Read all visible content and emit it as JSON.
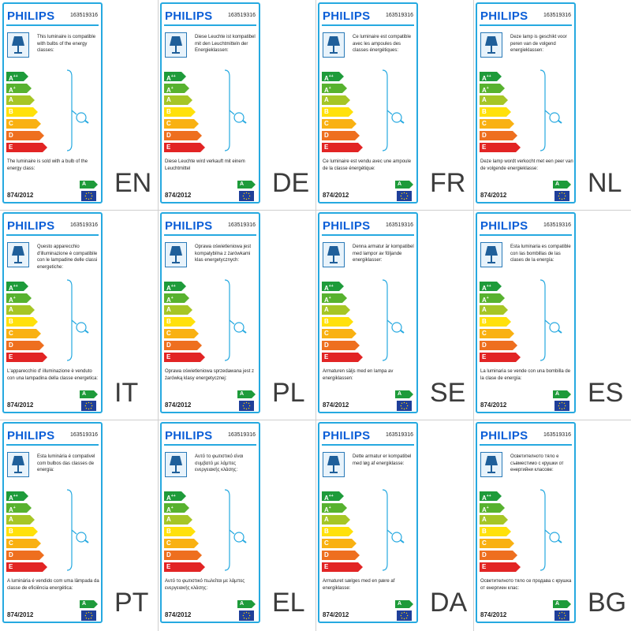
{
  "code": "163519316",
  "brand": "PHILIPS",
  "regulation": "874/2012",
  "sold_class": "A",
  "classes": [
    {
      "base": "A",
      "sup": "++"
    },
    {
      "base": "A",
      "sup": "+"
    },
    {
      "base": "A",
      "sup": ""
    },
    {
      "base": "B",
      "sup": ""
    },
    {
      "base": "C",
      "sup": ""
    },
    {
      "base": "D",
      "sup": ""
    },
    {
      "base": "E",
      "sup": ""
    }
  ],
  "class_colors": [
    "#1e9b3a",
    "#57b22f",
    "#a6c626",
    "#ffe10a",
    "#f9b112",
    "#ee6f1f",
    "#e22424"
  ],
  "cells": [
    {
      "lang": "EN",
      "desc": "This luminaire is compatible with bulbs of the energy classes:",
      "sold": "The luminaire is sold with a bulb of the energy class:"
    },
    {
      "lang": "DE",
      "desc": "Diese Leuchte ist kompatibel mit den Leuchtmitteln der Energieklassen:",
      "sold": "Diese Leuchte wird verkauft mit einem Leuchtmittel"
    },
    {
      "lang": "FR",
      "desc": "Ce luminaire est compatible avec les ampoules des classes énergétiques:",
      "sold": "Ce luminaire est vendu avec une ampoule de la classe énergétique:"
    },
    {
      "lang": "NL",
      "desc": "Deze lamp is geschikt voor peren van de volgend energieklassen:",
      "sold": "Deze lamp wordt verkocht met een peer van de volgende energieklasse:"
    },
    {
      "lang": "IT",
      "desc": "Questo apparecchio d'illuminazione è compatibile con le lampadine delle classi energetiche:",
      "sold": "L'apparecchio d' illuminazione è venduto con una lampadina della classe energetica:"
    },
    {
      "lang": "PL",
      "desc": "Oprawa oświetleniowa jest kompatybilna z żarówkami klas energetycznych:",
      "sold": "Oprawa oświetleniowa sprzedawana jest z żarówką klasy energetycznej:"
    },
    {
      "lang": "SE",
      "desc": "Denna armatur är kompatibel med lampor av följande energiklasser:",
      "sold": "Armaturen säljs med en lampa av energiklassen:"
    },
    {
      "lang": "ES",
      "desc": "Esta luminaria es compatible con las bombillas de las clases de la energía:",
      "sold": "La luminaria se vende con una bombilla de la clase de energía:"
    },
    {
      "lang": "PT",
      "desc": "Esta luminária é compativel com bulbos das classes de energia:",
      "sold": "A luminária é vendido com uma lâmpada da classe de eficiência energética:"
    },
    {
      "lang": "EL",
      "desc": "Αυτό το φωτιστικό είναι συμβατό με λάμπες ενεργειακής κλάσης:",
      "sold": "Αυτό το φωτιστικό πωλείται με λάμπες ενεργειακής κλάσης:"
    },
    {
      "lang": "DA",
      "desc": "Dette armatur er kompatibel med løg af energiklasse:",
      "sold": "Armaturet sælges med en pære af energiklasse:"
    },
    {
      "lang": "BG",
      "desc": "Осветителното тяло е съвместимо с крушки от енергийни класове:",
      "sold": "Осветителното тяло се продава с крушка от енергиен клас:"
    }
  ]
}
